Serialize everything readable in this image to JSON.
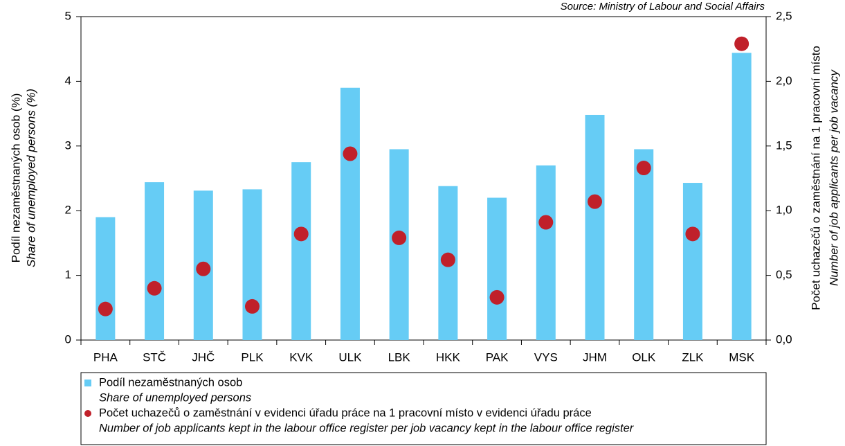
{
  "chart_data": {
    "type": "bar_dot",
    "source": "Source: Ministry of Labour and Social Affairs",
    "ylabel": "Podíl nezaměstnaných osob (%)",
    "ylabel_en": "Share of unemployed persons (%)",
    "y2label": "Počet uchazečů o zaměstnání na 1 pracovní  místo",
    "y2label_en": "Number of job applicants per job vacancy",
    "categories": [
      "PHA",
      "STČ",
      "JHČ",
      "PLK",
      "KVK",
      "ULK",
      "LBK",
      "HKK",
      "PAK",
      "VYS",
      "JHM",
      "OLK",
      "ZLK",
      "MSK"
    ],
    "series": [
      {
        "name": "Podíl nezaměstnaných osob",
        "name_en": "Share of unemployed persons",
        "color": "#66ccf5",
        "kind": "bar",
        "values": [
          1.9,
          2.44,
          2.31,
          2.33,
          2.75,
          3.9,
          2.95,
          2.38,
          2.2,
          2.7,
          3.48,
          2.95,
          2.43,
          4.44
        ]
      },
      {
        "name": "Počet uchazečů o zaměstnání v evidenci úřadu práce na 1 pracovní místo v evidenci úřadu práce",
        "name_en": "Number of job applicants kept in the labour office register per job vacancy kept in the labour office register",
        "color": "#c0202a",
        "kind": "dot",
        "axis": "y2",
        "values": [
          0.24,
          0.4,
          0.55,
          0.26,
          0.82,
          1.44,
          0.79,
          0.62,
          0.33,
          0.91,
          1.07,
          1.33,
          0.82,
          2.29
        ]
      }
    ],
    "ylim": [
      0,
      5
    ],
    "yticks": [
      0,
      1,
      2,
      3,
      4,
      5
    ],
    "y2lim": [
      0,
      2.5
    ],
    "y2ticks": [
      {
        "value": 0,
        "label": "0,0"
      },
      {
        "value": 0.5,
        "label": "0,5"
      },
      {
        "value": 1,
        "label": "1,0"
      },
      {
        "value": 1.5,
        "label": "1,5"
      },
      {
        "value": 2,
        "label": "2,0"
      },
      {
        "value": 2.5,
        "label": "2,5"
      }
    ],
    "grid": false
  }
}
